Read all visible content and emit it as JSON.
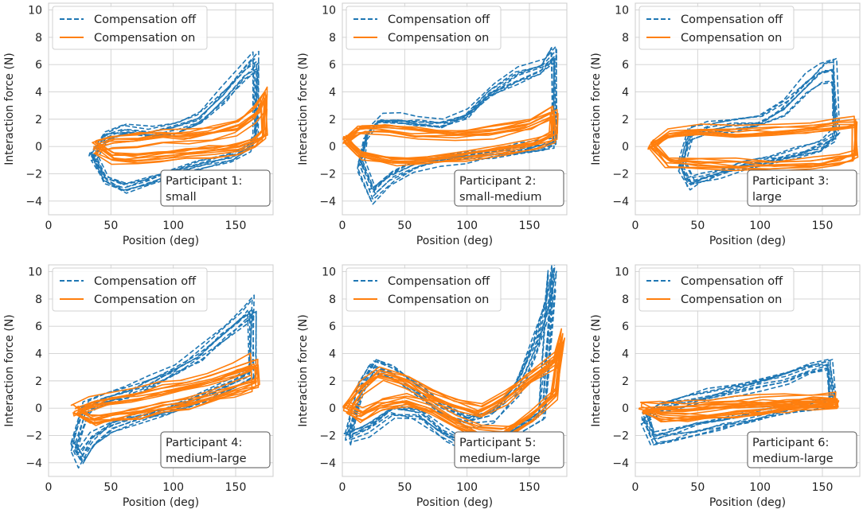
{
  "chart_data": [
    {
      "type": "line",
      "panel": 1,
      "title": "",
      "xlabel": "Position (deg)",
      "ylabel": "Interaction force (N)",
      "xlim": [
        0,
        180
      ],
      "ylim": [
        -5,
        10.5
      ],
      "xticks": [
        "0",
        "50",
        "100",
        "150"
      ],
      "yticks": [
        "−4",
        "−2",
        "0",
        "2",
        "4",
        "6",
        "8",
        "10"
      ],
      "legend": [
        "Compensation off",
        "Compensation on"
      ],
      "legend_location": "upper-left",
      "annotation": [
        "Participant 1:",
        "small"
      ],
      "series": [
        {
          "name": "Compensation off",
          "style": "dashed",
          "color": "#1f77b4",
          "x": [
            35,
            45,
            60,
            80,
            100,
            120,
            140,
            155,
            165,
            165,
            160,
            145,
            120,
            100,
            80,
            60,
            45,
            35
          ],
          "y": [
            -0.5,
            0.9,
            1.3,
            1.1,
            1.4,
            2.1,
            3.9,
            5.4,
            6.3,
            0.9,
            0.1,
            -0.7,
            -1.2,
            -1.8,
            -2.4,
            -2.9,
            -2.3,
            -0.5
          ]
        },
        {
          "name": "Compensation on",
          "style": "solid",
          "color": "#ff7f0e",
          "x": [
            37,
            50,
            70,
            90,
            110,
            130,
            150,
            165,
            172,
            172,
            165,
            150,
            130,
            110,
            90,
            70,
            50,
            37
          ],
          "y": [
            0,
            0.35,
            0.5,
            0.7,
            0.8,
            1.0,
            1.4,
            2.4,
            3.6,
            0.9,
            0.3,
            -0.2,
            -0.4,
            -0.6,
            -0.8,
            -0.9,
            -0.8,
            0
          ]
        }
      ]
    },
    {
      "type": "line",
      "panel": 2,
      "title": "",
      "xlabel": "Position (deg)",
      "ylabel": "Interaction force (N)",
      "xlim": [
        0,
        180
      ],
      "ylim": [
        -5,
        10.5
      ],
      "xticks": [
        "0",
        "50",
        "100",
        "150"
      ],
      "yticks": [
        "−4",
        "−2",
        "0",
        "2",
        "4",
        "6",
        "8",
        "10"
      ],
      "legend": [
        "Compensation off",
        "Compensation on"
      ],
      "legend_location": "upper-left",
      "annotation": [
        "Participant 2:",
        "small-medium"
      ],
      "series": [
        {
          "name": "Compensation off",
          "style": "dashed",
          "color": "#1f77b4",
          "x": [
            15,
            20,
            30,
            45,
            60,
            80,
            100,
            120,
            140,
            160,
            170,
            170,
            160,
            140,
            120,
            100,
            80,
            60,
            40,
            25,
            15
          ],
          "y": [
            -1.2,
            0.9,
            2.1,
            2.0,
            1.8,
            1.7,
            2.4,
            4.0,
            5.2,
            5.8,
            6.9,
            0.3,
            0.0,
            -0.2,
            -0.5,
            -0.7,
            -0.9,
            -1.3,
            -2.2,
            -3.4,
            -1.2
          ]
        },
        {
          "name": "Compensation on",
          "style": "solid",
          "color": "#ff7f0e",
          "x": [
            3,
            15,
            35,
            60,
            90,
            120,
            150,
            170,
            170,
            155,
            130,
            100,
            70,
            40,
            15,
            3
          ],
          "y": [
            0.5,
            1.2,
            1.3,
            1.1,
            0.9,
            1.1,
            1.6,
            2.6,
            0.8,
            0.2,
            -0.3,
            -0.7,
            -1.0,
            -1.1,
            -0.6,
            0.5
          ]
        }
      ]
    },
    {
      "type": "line",
      "panel": 3,
      "title": "",
      "xlabel": "Position (deg)",
      "ylabel": "Interaction force (N)",
      "xlim": [
        0,
        180
      ],
      "ylim": [
        -5,
        10.5
      ],
      "xticks": [
        "0",
        "50",
        "100",
        "150"
      ],
      "yticks": [
        "−4",
        "−2",
        "0",
        "2",
        "4",
        "6",
        "8",
        "10"
      ],
      "legend": [
        "Compensation off",
        "Compensation on"
      ],
      "legend_location": "upper-left",
      "annotation": [
        "Participant 3:",
        "large"
      ],
      "series": [
        {
          "name": "Compensation off",
          "style": "dashed",
          "color": "#1f77b4",
          "x": [
            38,
            45,
            60,
            80,
            100,
            120,
            140,
            150,
            160,
            162,
            150,
            130,
            110,
            90,
            70,
            55,
            45,
            38
          ],
          "y": [
            -1.3,
            0.9,
            1.3,
            1.6,
            1.8,
            2.8,
            4.6,
            5.4,
            5.6,
            0.8,
            0.1,
            -0.5,
            -0.9,
            -1.3,
            -1.8,
            -2.3,
            -2.6,
            -1.3
          ]
        },
        {
          "name": "Compensation on",
          "style": "solid",
          "color": "#ff7f0e",
          "x": [
            12,
            25,
            50,
            80,
            110,
            140,
            160,
            175,
            175,
            160,
            140,
            110,
            80,
            50,
            25,
            12
          ],
          "y": [
            0.2,
            1.0,
            1.2,
            1.1,
            1.2,
            1.4,
            1.6,
            1.8,
            -0.6,
            -1.0,
            -1.2,
            -1.3,
            -1.3,
            -1.2,
            -1.0,
            0.2
          ]
        }
      ]
    },
    {
      "type": "line",
      "panel": 4,
      "title": "",
      "xlabel": "Position (deg)",
      "ylabel": "Interaction force (N)",
      "xlim": [
        0,
        180
      ],
      "ylim": [
        -5,
        10.5
      ],
      "xticks": [
        "0",
        "50",
        "100",
        "150"
      ],
      "yticks": [
        "−4",
        "−2",
        "0",
        "2",
        "4",
        "6",
        "8",
        "10"
      ],
      "legend": [
        "Compensation off",
        "Compensation on"
      ],
      "legend_location": "upper-left",
      "annotation": [
        "Participant 4:",
        "medium-large"
      ],
      "series": [
        {
          "name": "Compensation off",
          "style": "dashed",
          "color": "#1f77b4",
          "x": [
            20,
            30,
            45,
            60,
            80,
            100,
            120,
            140,
            155,
            163,
            163,
            150,
            130,
            110,
            90,
            70,
            50,
            35,
            25,
            20
          ],
          "y": [
            -2.6,
            0.2,
            0.8,
            1.2,
            2.0,
            2.9,
            4.0,
            5.6,
            6.8,
            7.5,
            2.8,
            2.1,
            1.2,
            0.4,
            -0.2,
            -0.6,
            -1.3,
            -2.2,
            -3.6,
            -2.6
          ]
        },
        {
          "name": "Compensation on",
          "style": "solid",
          "color": "#ff7f0e",
          "x": [
            22,
            35,
            50,
            70,
            90,
            110,
            130,
            150,
            165,
            165,
            150,
            130,
            110,
            90,
            70,
            50,
            35,
            22
          ],
          "y": [
            -0.2,
            0.3,
            0.6,
            0.9,
            1.3,
            1.6,
            2.1,
            2.8,
            3.2,
            1.8,
            1.3,
            0.8,
            0.3,
            0.0,
            -0.4,
            -0.7,
            -0.9,
            -0.2
          ]
        }
      ]
    },
    {
      "type": "line",
      "panel": 5,
      "title": "",
      "xlabel": "Position (deg)",
      "ylabel": "Interaction force (N)",
      "xlim": [
        0,
        180
      ],
      "ylim": [
        -5,
        10.5
      ],
      "xticks": [
        "0",
        "50",
        "100",
        "150"
      ],
      "yticks": [
        "−4",
        "−2",
        "0",
        "2",
        "4",
        "6",
        "8",
        "10"
      ],
      "legend": [
        "Compensation off",
        "Compensation on"
      ],
      "legend_location": "upper-left",
      "annotation": [
        "Participant 5:",
        "medium-large"
      ],
      "series": [
        {
          "name": "Compensation off",
          "style": "dashed",
          "color": "#1f77b4",
          "x": [
            5,
            15,
            25,
            40,
            60,
            80,
            100,
            120,
            140,
            155,
            165,
            168,
            160,
            140,
            120,
            100,
            80,
            60,
            40,
            20,
            5
          ],
          "y": [
            -2.0,
            1.5,
            3.0,
            2.5,
            1.2,
            -0.2,
            -1.0,
            -0.6,
            1.5,
            4.5,
            7.5,
            9.5,
            -0.5,
            -1.5,
            -2.5,
            -2.8,
            -1.8,
            -0.5,
            -0.2,
            -1.5,
            -2.0
          ]
        },
        {
          "name": "Compensation on",
          "style": "solid",
          "color": "#ff7f0e",
          "x": [
            3,
            15,
            30,
            50,
            70,
            90,
            110,
            130,
            150,
            170,
            175,
            170,
            150,
            130,
            110,
            90,
            70,
            50,
            30,
            15,
            3
          ],
          "y": [
            0.0,
            1.5,
            2.5,
            2.0,
            1.0,
            0.3,
            -0.2,
            0.8,
            2.2,
            3.5,
            5.0,
            1.0,
            -0.7,
            -1.8,
            -1.8,
            -1.0,
            0.0,
            0.6,
            0.2,
            -0.5,
            0.0
          ]
        }
      ]
    },
    {
      "type": "line",
      "panel": 6,
      "title": "",
      "xlabel": "Position (deg)",
      "ylabel": "Interaction force (N)",
      "xlim": [
        0,
        180
      ],
      "ylim": [
        -5,
        10.5
      ],
      "xticks": [
        "0",
        "50",
        "100",
        "150"
      ],
      "yticks": [
        "−4",
        "−2",
        "0",
        "2",
        "4",
        "6",
        "8",
        "10"
      ],
      "legend": [
        "Compensation off",
        "Compensation on"
      ],
      "legend_location": "upper-left",
      "annotation": [
        "Participant 6:",
        "medium-large"
      ],
      "series": [
        {
          "name": "Compensation off",
          "style": "dashed",
          "color": "#1f77b4",
          "x": [
            8,
            20,
            40,
            60,
            80,
            100,
            120,
            140,
            155,
            158,
            150,
            130,
            110,
            90,
            70,
            50,
            30,
            15,
            8
          ],
          "y": [
            -0.6,
            0.2,
            0.6,
            1.0,
            1.4,
            1.8,
            2.3,
            2.9,
            3.2,
            0.6,
            0.4,
            0.1,
            -0.3,
            -0.7,
            -1.1,
            -1.5,
            -1.9,
            -2.1,
            -0.6
          ]
        },
        {
          "name": "Compensation on",
          "style": "solid",
          "color": "#ff7f0e",
          "x": [
            5,
            20,
            40,
            60,
            80,
            100,
            120,
            140,
            160,
            160,
            140,
            120,
            100,
            80,
            60,
            40,
            20,
            5
          ],
          "y": [
            0.0,
            0.1,
            0.2,
            0.3,
            0.4,
            0.5,
            0.55,
            0.65,
            0.75,
            0.3,
            0.2,
            0.05,
            -0.1,
            -0.25,
            -0.4,
            -0.55,
            -0.6,
            0.0
          ]
        }
      ]
    }
  ]
}
